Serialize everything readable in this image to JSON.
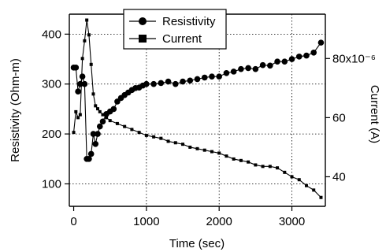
{
  "chart_data": {
    "type": "line",
    "xlabel": "Time (sec)",
    "ylabel_left": "Resistivity (Ohm-m)",
    "ylabel_right": "Current (A)",
    "right_axis_exponent_label": "80x10⁻⁶",
    "xlim": [
      -60,
      3460
    ],
    "ylim_left": [
      55,
      440
    ],
    "ylim_right": [
      30,
      95
    ],
    "x_ticks": [
      0,
      1000,
      2000,
      3000
    ],
    "y_left_ticks": [
      100,
      200,
      300,
      400
    ],
    "y_right_ticks": [
      40,
      60,
      80
    ],
    "y_right_tick_labels": [
      "40",
      "60",
      "80x10⁻⁶"
    ],
    "grid": true,
    "legend_position": "top-center",
    "series": [
      {
        "name": "Resistivity",
        "axis": "left",
        "marker": "circle",
        "x": [
          0,
          30,
          60,
          90,
          120,
          150,
          180,
          210,
          240,
          270,
          300,
          330,
          360,
          400,
          450,
          500,
          550,
          600,
          650,
          700,
          750,
          800,
          850,
          900,
          950,
          1000,
          1100,
          1200,
          1300,
          1400,
          1500,
          1600,
          1700,
          1800,
          1900,
          2000,
          2100,
          2200,
          2300,
          2400,
          2500,
          2600,
          2700,
          2800,
          2900,
          3000,
          3100,
          3200,
          3300,
          3400
        ],
        "y": [
          333,
          333,
          285,
          300,
          315,
          300,
          150,
          150,
          160,
          200,
          180,
          200,
          215,
          225,
          240,
          245,
          250,
          265,
          272,
          278,
          283,
          288,
          292,
          293,
          297,
          300,
          300,
          302,
          305,
          300,
          305,
          307,
          310,
          313,
          315,
          315,
          322,
          325,
          330,
          332,
          330,
          338,
          337,
          345,
          345,
          350,
          355,
          357,
          363,
          383
        ]
      },
      {
        "name": "Current",
        "axis": "right",
        "marker": "square",
        "x": [
          0,
          30,
          60,
          90,
          120,
          150,
          180,
          210,
          240,
          270,
          300,
          330,
          360,
          400,
          450,
          500,
          600,
          700,
          800,
          900,
          1000,
          1100,
          1200,
          1300,
          1400,
          1500,
          1600,
          1700,
          1800,
          1900,
          2000,
          2100,
          2200,
          2300,
          2400,
          2500,
          2600,
          2700,
          2800,
          2900,
          3000,
          3100,
          3200,
          3300,
          3400
        ],
        "y": [
          55,
          62,
          60,
          61,
          80,
          86,
          93,
          88,
          78,
          68,
          64,
          63,
          62,
          61,
          60,
          59,
          58,
          57,
          56,
          55,
          54,
          53.5,
          53,
          52,
          51.5,
          51,
          50,
          49.5,
          49,
          48.5,
          48,
          47,
          46,
          45.5,
          45,
          44,
          43.5,
          43.5,
          43,
          41.5,
          40,
          39,
          37,
          35.5,
          33
        ]
      }
    ]
  }
}
